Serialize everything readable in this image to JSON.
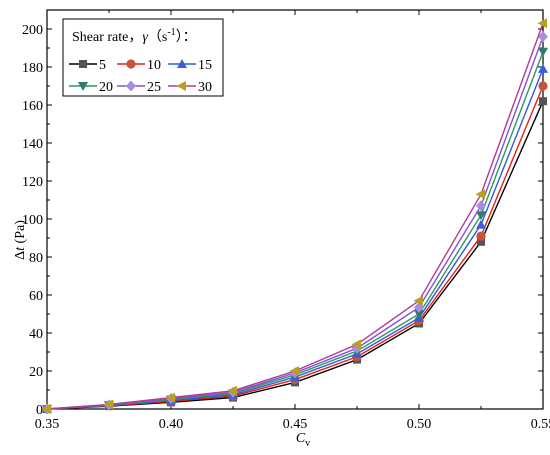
{
  "chart_data": {
    "type": "line",
    "xlabel_main": "C",
    "xlabel_sub": "v",
    "ylabel_prefix": "Δ",
    "ylabel_var": "t",
    "ylabel_suffix": " (Pa)",
    "xlim": [
      0.35,
      0.55
    ],
    "ylim": [
      0,
      210
    ],
    "xticks": [
      0.35,
      0.4,
      0.45,
      0.5,
      0.55
    ],
    "xtick_labels": [
      "0.35",
      "0.40",
      "0.45",
      "0.50",
      "0.55"
    ],
    "yticks": [
      0,
      20,
      40,
      60,
      80,
      100,
      120,
      140,
      160,
      180,
      200
    ],
    "ytick_labels": [
      "0",
      "20",
      "40",
      "60",
      "80",
      "100",
      "120",
      "140",
      "160",
      "180",
      "200"
    ],
    "grid": false,
    "legend": {
      "placement": "top-left",
      "title_main": "Shear rate",
      "title_sep": "，",
      "title_gamma": "γ",
      "title_unit_open": "（s",
      "title_unit_exp": "-1",
      "title_unit_close": "）：",
      "columns": 3
    },
    "x": [
      0.35,
      0.375,
      0.4,
      0.425,
      0.45,
      0.475,
      0.5,
      0.525,
      0.55
    ],
    "series": [
      {
        "name": "5",
        "color": "#000000",
        "marker_color": "#555555",
        "marker": "square",
        "values": [
          0,
          1.5,
          3.5,
          6,
          14,
          26,
          45,
          88,
          162
        ]
      },
      {
        "name": "10",
        "color": "#e0201a",
        "marker_color": "#c8523a",
        "marker": "circle",
        "values": [
          0,
          1.7,
          4,
          6.8,
          15.5,
          27.5,
          46.5,
          91,
          170
        ]
      },
      {
        "name": "15",
        "color": "#2f5bd6",
        "marker_color": "#3a5fd8",
        "marker": "triangle-up",
        "values": [
          0,
          1.9,
          4.5,
          7.5,
          16.8,
          29,
          48,
          97,
          179
        ]
      },
      {
        "name": "20",
        "color": "#2a9a5a",
        "marker_color": "#2e7d6a",
        "marker": "triangle-down",
        "values": [
          0,
          2.0,
          5,
          8.2,
          18,
          30.5,
          50,
          102,
          188
        ]
      },
      {
        "name": "25",
        "color": "#8a4fd8",
        "marker_color": "#a98be0",
        "marker": "diamond",
        "values": [
          0,
          2.2,
          5.5,
          8.8,
          19,
          32,
          53.5,
          107,
          196
        ]
      },
      {
        "name": "30",
        "color": "#b03a9a",
        "marker_color": "#b8a020",
        "marker": "triangle-left",
        "values": [
          0,
          2.4,
          6,
          9.6,
          20,
          34,
          57,
          113,
          203
        ]
      }
    ]
  }
}
